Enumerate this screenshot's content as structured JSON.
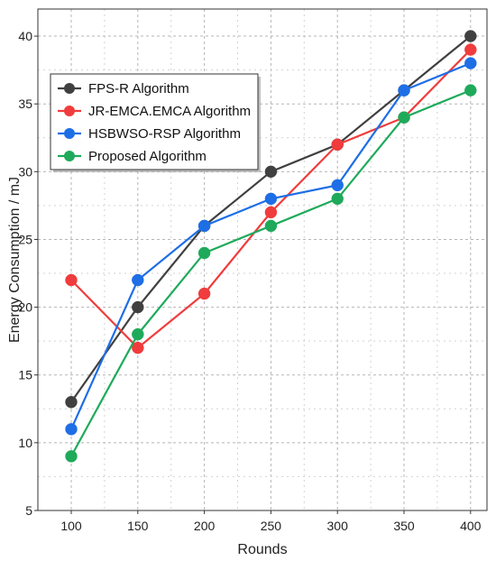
{
  "chart_data": {
    "type": "line",
    "title": "",
    "xlabel": "Rounds",
    "ylabel": "Energy Consumption / mJ",
    "x": [
      100,
      150,
      200,
      250,
      300,
      350,
      400
    ],
    "ylim": [
      5,
      42
    ],
    "yticks": [
      5,
      10,
      15,
      20,
      25,
      30,
      35,
      40
    ],
    "grid": "dashed",
    "legend_position": "top-left",
    "series": [
      {
        "name": "FPS-R Algorithm",
        "color": "#404040",
        "values": [
          13,
          20,
          26,
          30,
          32,
          36,
          40
        ]
      },
      {
        "name": "JR-EMCA.EMCA Algorithm",
        "color": "#f03c3c",
        "values": [
          22,
          17,
          21,
          27,
          32,
          34,
          39
        ]
      },
      {
        "name": "HSBWSO-RSP Algorithm",
        "color": "#1e6ee6",
        "values": [
          11,
          22,
          26,
          28,
          29,
          36,
          38
        ]
      },
      {
        "name": "Proposed Algorithm",
        "color": "#1eaa5a",
        "values": [
          9,
          18,
          24,
          26,
          28,
          34,
          36
        ]
      }
    ]
  }
}
